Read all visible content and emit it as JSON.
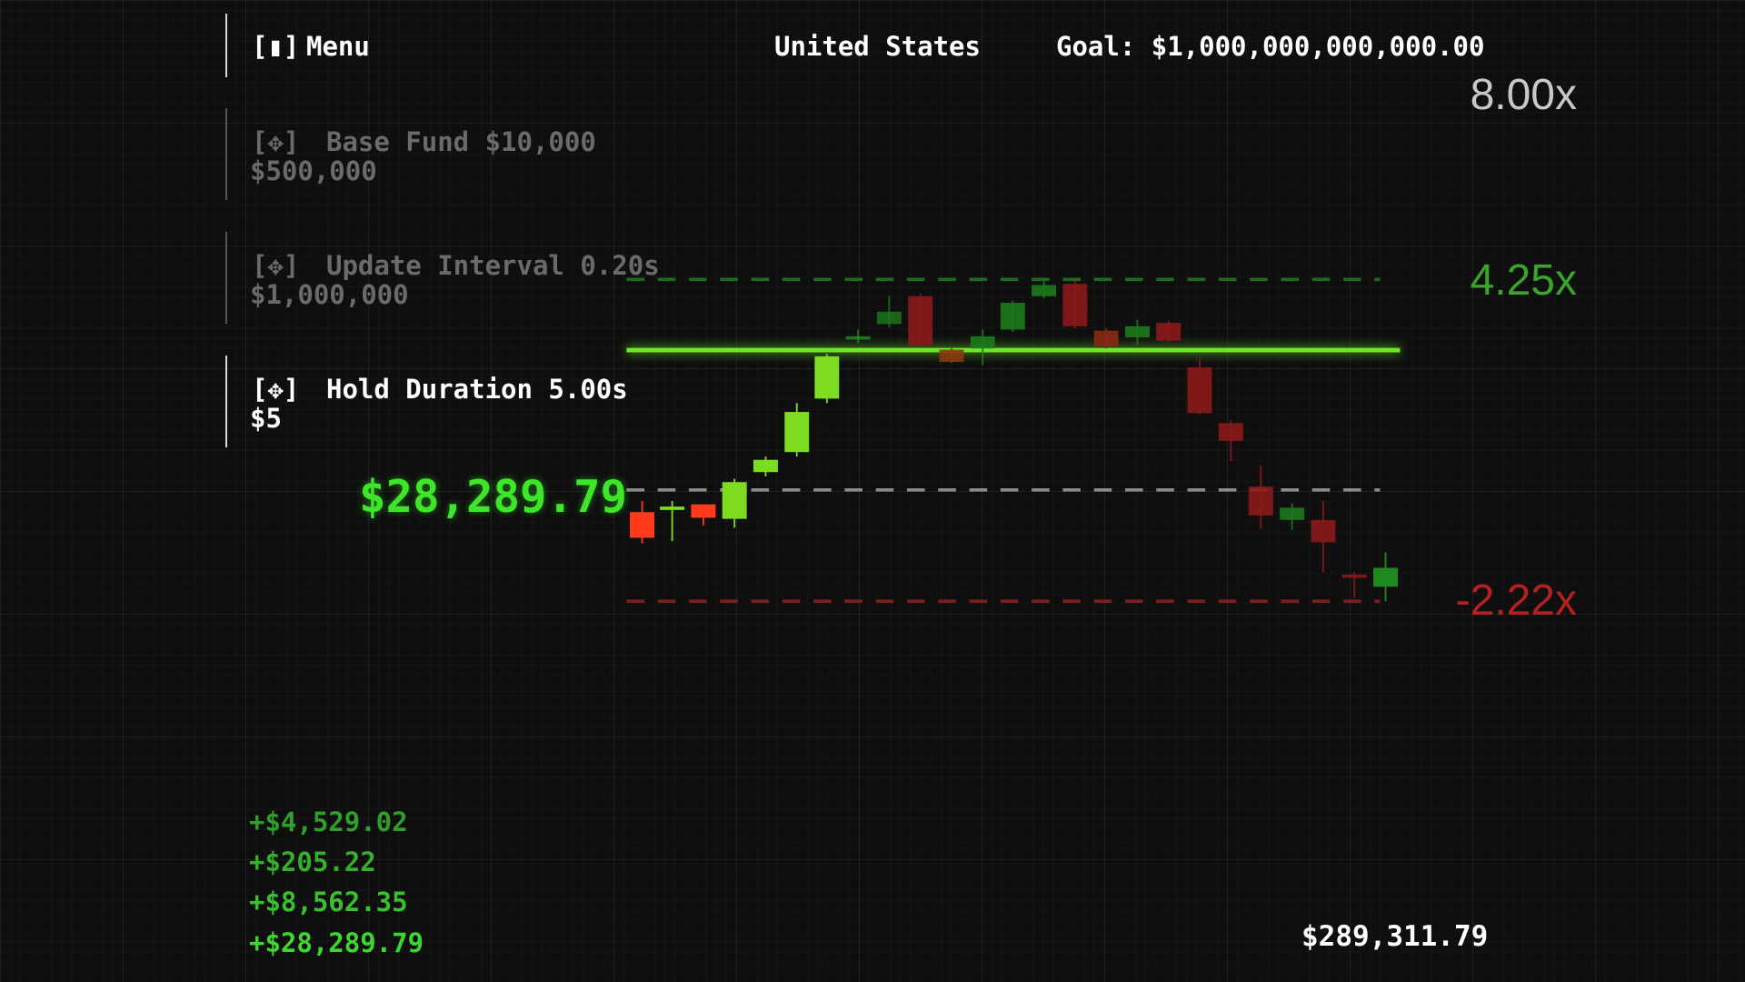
{
  "header": {
    "menu_key": "Menu",
    "country": "United States",
    "goal": "Goal: $1,000,000,000,000.00"
  },
  "upgrades": [
    {
      "label": "Base Fund $10,000",
      "cost": "$500,000"
    },
    {
      "label": "Update Interval 0.20s",
      "cost": "$1,000,000"
    },
    {
      "label": "Hold Duration 5.00s",
      "cost": "$5"
    }
  ],
  "current_value": "$28,289.79",
  "multipliers": {
    "top": "8.00x",
    "upper": "4.25x",
    "lower": "-2.22x"
  },
  "gains": [
    "+$4,529.02",
    "+$205.22",
    "+$8,562.35",
    "+$28,289.79"
  ],
  "total": "$289,311.79"
}
